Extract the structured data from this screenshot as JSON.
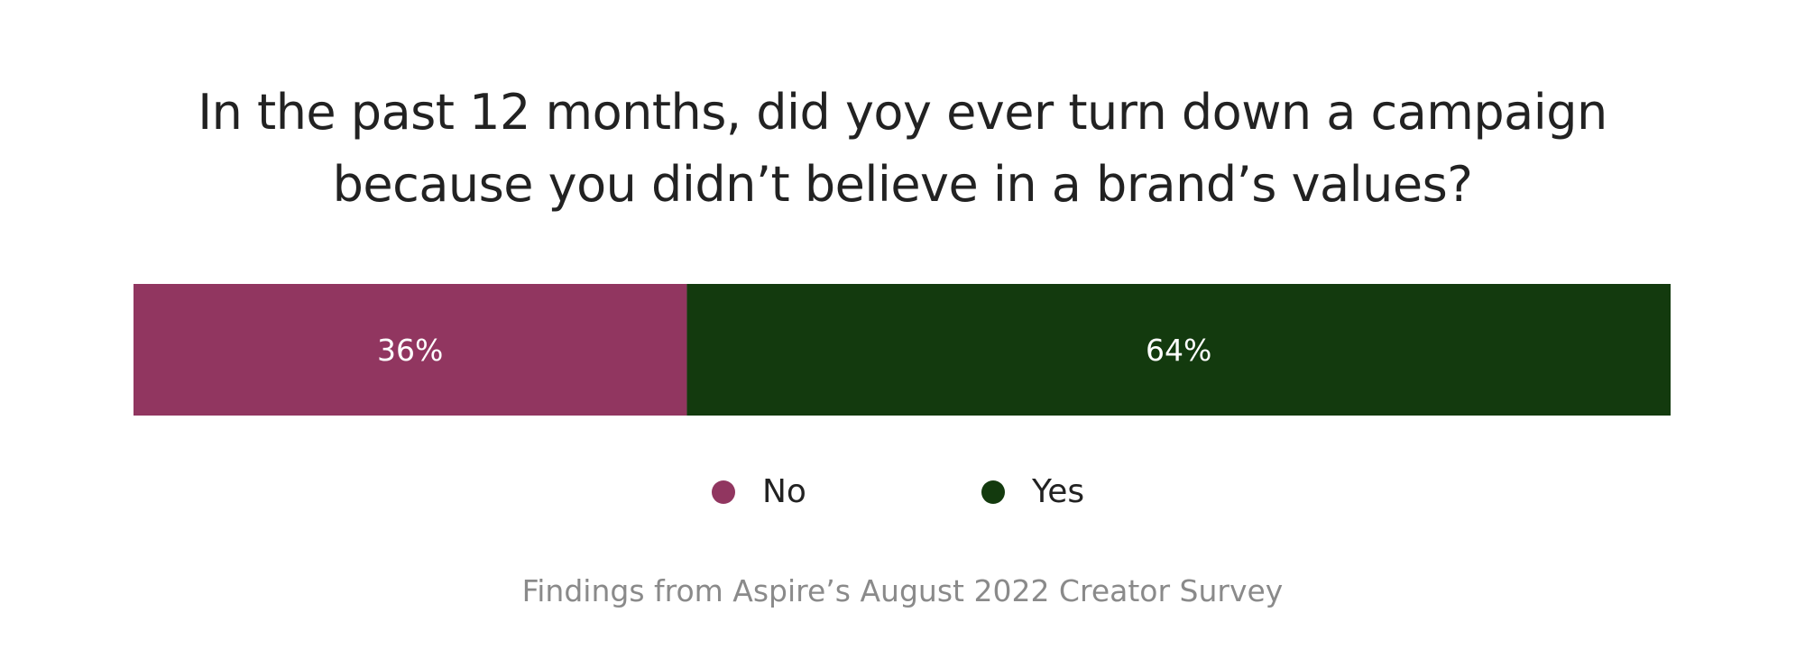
{
  "chart_data": {
    "type": "bar",
    "orientation": "horizontal-stacked",
    "title_lines": [
      "In the past 12 months, did yoy ever turn down a campaign",
      "because you didn’t believe in a brand’s values?"
    ],
    "series": [
      {
        "name": "No",
        "value": 36,
        "label": "36%",
        "color": "#913660"
      },
      {
        "name": "Yes",
        "value": 64,
        "label": "64%",
        "color": "#133a0e"
      }
    ],
    "xlim": [
      0,
      100
    ],
    "grid": false,
    "legend_placement": "bottom",
    "footnote": "Findings from Aspire’s August 2022 Creator Survey"
  }
}
